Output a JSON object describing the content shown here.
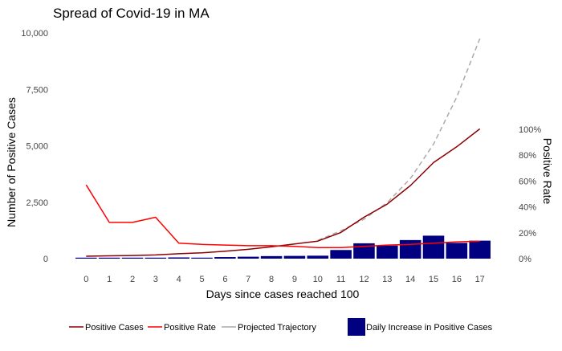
{
  "chart_data": {
    "type": "bar+line",
    "title": "Spread of Covid-19 in MA",
    "xlabel": "Days since cases reached 100",
    "ylabel": "Number of Positive Cases",
    "y2label": "Positive Rate",
    "x": [
      0,
      1,
      2,
      3,
      4,
      5,
      6,
      7,
      8,
      9,
      10,
      11,
      12,
      13,
      14,
      15,
      16,
      17
    ],
    "xlim": [
      -0.6,
      17.6
    ],
    "ylim": [
      0,
      10000
    ],
    "y_ticks": [
      0,
      2500,
      5000,
      7500,
      10000
    ],
    "y_tick_labels": [
      "0",
      "2,500",
      "5,000",
      "7,500",
      "10,000"
    ],
    "y2_ticks": [
      0,
      20,
      40,
      60,
      80,
      100
    ],
    "y2_tick_labels": [
      "0%",
      "20%",
      "40%",
      "60%",
      "80%",
      "100%"
    ],
    "y2lim": [
      0,
      100
    ],
    "legend_position": "bottom",
    "grid": false,
    "series": [
      {
        "name": "Positive Cases",
        "kind": "line",
        "axis": "left",
        "color": "#8b0000",
        "style": "solid",
        "values": [
          108,
          123,
          138,
          164,
          218,
          258,
          328,
          413,
          525,
          646,
          777,
          1159,
          1838,
          2417,
          3240,
          4257,
          4955,
          5752
        ]
      },
      {
        "name": "Positive Rate",
        "kind": "line",
        "axis": "right",
        "color": "#ff0000",
        "style": "solid",
        "values": [
          57,
          28,
          28,
          32,
          12,
          11,
          10.5,
          10,
          10,
          9.5,
          8.5,
          8.5,
          9.5,
          10.5,
          11,
          12,
          13,
          13.5
        ]
      },
      {
        "name": "Projected Trajectory",
        "kind": "line",
        "axis": "left",
        "color": "#aaaaaa",
        "style": "dashed",
        "x": [
          10,
          11,
          12,
          13,
          14,
          15,
          16,
          17
        ],
        "values": [
          810,
          1230,
          1750,
          2480,
          3550,
          5070,
          7150,
          9750
        ]
      },
      {
        "name": "Daily Increase in Positive Cases",
        "kind": "bar",
        "axis": "left",
        "color": "#000080",
        "values": [
          0,
          15,
          15,
          26,
          54,
          40,
          70,
          85,
          112,
          121,
          131,
          382,
          679,
          579,
          823,
          1017,
          698,
          797
        ]
      }
    ]
  }
}
